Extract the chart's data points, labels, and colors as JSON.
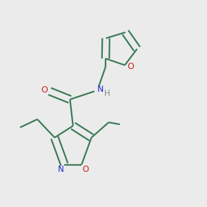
{
  "bg_color": "#ebebeb",
  "bond_color": "#3a7a55",
  "N_color": "#2020cc",
  "O_color": "#cc2020",
  "H_color": "#888888",
  "line_width": 1.6,
  "dbo": 0.018,
  "figsize": [
    3.0,
    3.0
  ],
  "dpi": 100,
  "xlim": [
    0.0,
    1.0
  ],
  "ylim": [
    0.0,
    1.0
  ]
}
